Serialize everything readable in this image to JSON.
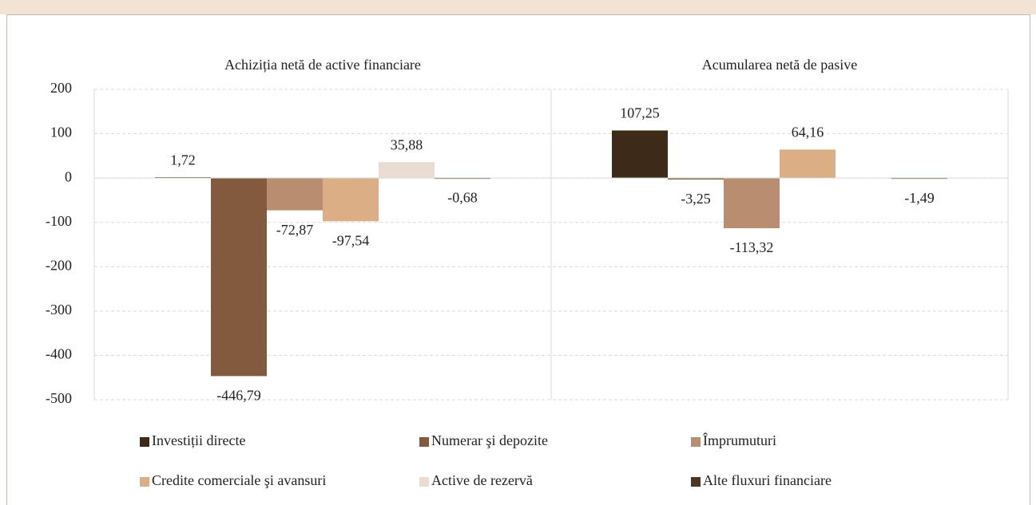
{
  "chart_data": {
    "type": "bar",
    "categories": [
      "Achiziția netă de active financiare",
      "Acumularea netă de pasive"
    ],
    "series": [
      {
        "name": "Investiții directe",
        "color": "#3e2a18",
        "values": [
          1.72,
          107.25
        ],
        "value_labels": [
          "1,72",
          "107,25"
        ]
      },
      {
        "name": "Numerar şi depozite",
        "color": "#825b3e",
        "values": [
          -446.79,
          -3.25
        ],
        "value_labels": [
          "-446,79",
          "-3,25"
        ]
      },
      {
        "name": "Împrumuturi",
        "color": "#b98e70",
        "values": [
          -72.87,
          -113.32
        ],
        "value_labels": [
          "-72,87",
          "-113,32"
        ]
      },
      {
        "name": "Credite comerciale şi avansuri",
        "color": "#dbae86",
        "values": [
          -97.54,
          64.16
        ],
        "value_labels": [
          "-97,54",
          "64,16"
        ]
      },
      {
        "name": "Active de rezervă",
        "color": "#e9ddd3",
        "values": [
          35.88,
          null
        ],
        "value_labels": [
          "35,88",
          null
        ]
      },
      {
        "name": "Alte fluxuri financiare",
        "color": "#4e3424",
        "values": [
          -0.68,
          -1.49
        ],
        "value_labels": [
          "-0,68",
          "-1,49"
        ]
      }
    ],
    "ylim": [
      -500,
      200
    ],
    "yticks": [
      -500,
      -400,
      -300,
      -200,
      -100,
      0,
      100,
      200
    ],
    "grid": true
  }
}
